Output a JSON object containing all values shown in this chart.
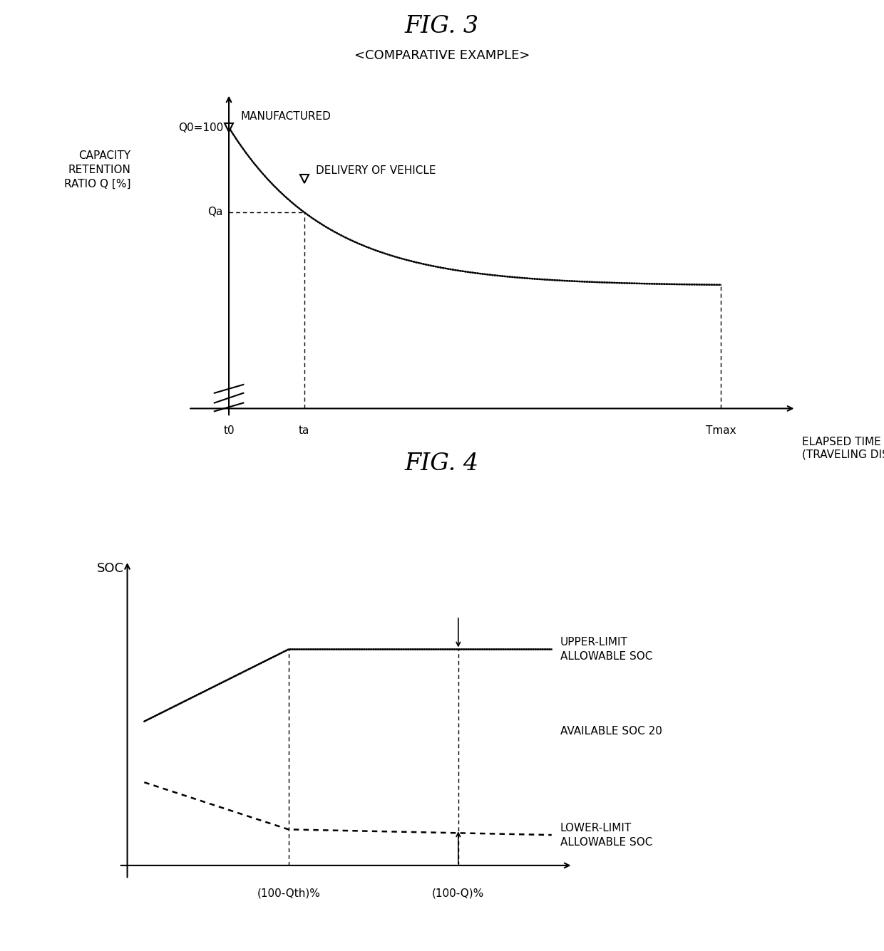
{
  "fig3_title": "FIG. 3",
  "fig3_subtitle": "<COMPARATIVE EXAMPLE>",
  "fig3_ylabel": "CAPACITY\nRETENTION\nRATIO Q [%]",
  "fig3_xlabel_line1": "ELAPSED TIME",
  "fig3_xlabel_line2": "(TRAVELING DISTANCE)",
  "fig3_labels": {
    "manufactured": "MANUFACTURED",
    "delivery": "DELIVERY OF VEHICLE",
    "Q0": "Q0=100",
    "Qa": "Qa",
    "t0": "t0",
    "ta": "ta",
    "Tmax": "Tmax"
  },
  "fig4_title": "FIG. 4",
  "fig4_ylabel": "SOC",
  "fig4_xlabel": "(100-Q)%",
  "fig4_xlabel2": "(100-Qth)%",
  "fig4_labels": {
    "upper": "UPPER-LIMIT\nALLOWABLE SOC",
    "available": "AVAILABLE SOC 20",
    "lower": "LOWER-LIMIT\nALLOWABLE SOC"
  },
  "bg_color": "#ffffff",
  "line_color": "#000000"
}
